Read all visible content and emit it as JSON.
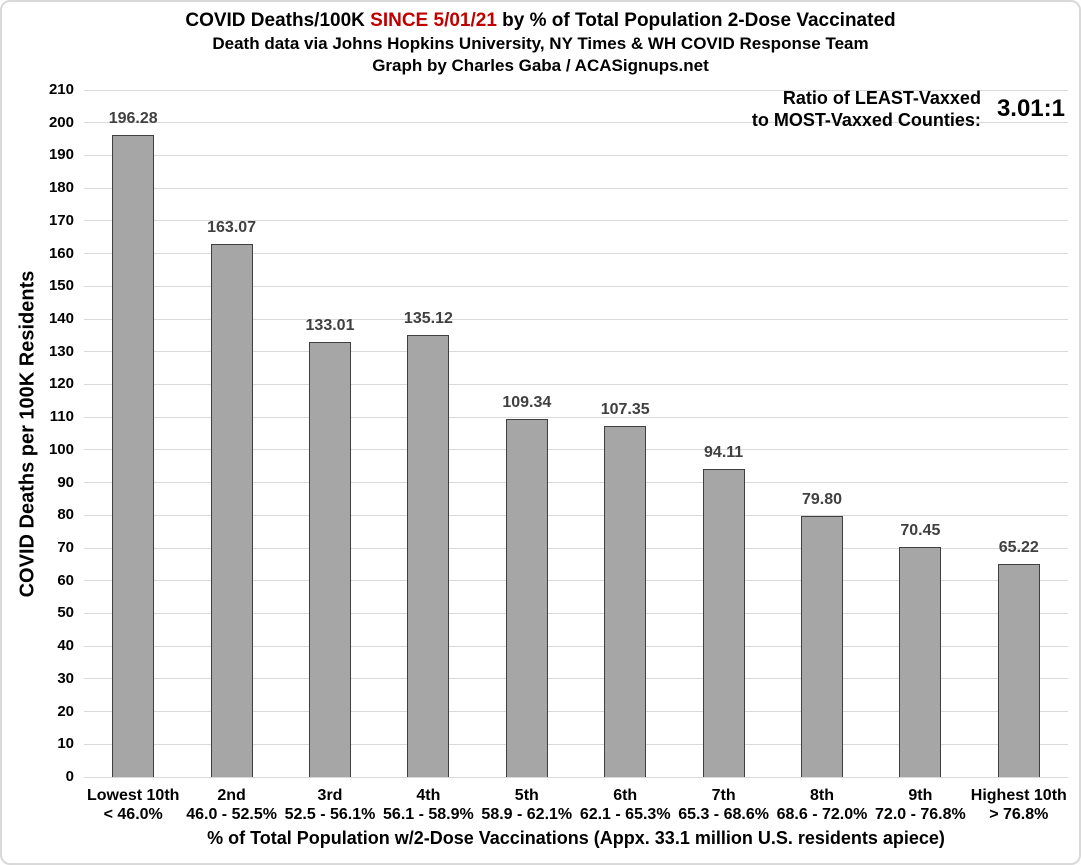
{
  "header": {
    "title_prefix": "COVID Deaths/100K ",
    "title_highlight": "SINCE 5/01/21",
    "title_suffix": " by % of Total Population 2-Dose Vaccinated",
    "subtitle_line1": "Death data via Johns Hopkins University, NY Times & WH COVID Response Team",
    "subtitle_line2": "Graph by Charles Gaba / ACASignups.net"
  },
  "annotation": {
    "line1": "Ratio of LEAST-Vaxxed",
    "line2": "to MOST-Vaxxed Counties:",
    "value": "3.01:1"
  },
  "chart_data": {
    "type": "bar",
    "title": "COVID Deaths/100K SINCE 5/01/21 by % of Total Population 2-Dose Vaccinated",
    "subtitle1": "Death data via Johns Hopkins University, NY Times & WH COVID Response Team",
    "subtitle2": "Graph by Charles Gaba / ACASignups.net",
    "categories": [
      "Lowest 10th",
      "2nd",
      "3rd",
      "4th",
      "5th",
      "6th",
      "7th",
      "8th",
      "9th",
      "Highest 10th"
    ],
    "category_ranges": [
      "< 46.0%",
      "46.0 - 52.5%",
      "52.5 - 56.1%",
      "56.1 - 58.9%",
      "58.9 - 62.1%",
      "62.1 - 65.3%",
      "65.3 - 68.6%",
      "68.6 - 72.0%",
      "72.0 - 76.8%",
      "> 76.8%"
    ],
    "values": [
      196.28,
      163.07,
      133.01,
      135.12,
      109.34,
      107.35,
      94.11,
      79.8,
      70.45,
      65.22
    ],
    "value_labels": [
      "196.28",
      "163.07",
      "133.01",
      "135.12",
      "109.34",
      "107.35",
      "94.11",
      "79.80",
      "70.45",
      "65.22"
    ],
    "xlabel": "% of Total Population w/2-Dose Vaccinations (Appx. 33.1 million U.S. residents apiece)",
    "ylabel": "COVID Deaths per 100K Residents",
    "ylim": [
      0,
      210
    ],
    "ytick_step": 10,
    "yticks": [
      "0",
      "10",
      "20",
      "30",
      "40",
      "50",
      "60",
      "70",
      "80",
      "90",
      "100",
      "110",
      "120",
      "130",
      "140",
      "150",
      "160",
      "170",
      "180",
      "190",
      "200",
      "210"
    ],
    "grid": true,
    "legend_position": "none",
    "annotation": "Ratio of LEAST-Vaxxed to MOST-Vaxxed Counties: 3.01:1"
  },
  "colors": {
    "bar_fill": "#a6a6a6",
    "bar_border": "#3f3f3f",
    "highlight_red": "#c00000",
    "gridline": "#d9d9d9",
    "data_label": "#404040",
    "text": "#000000",
    "chart_border": "#d9d9d9"
  }
}
